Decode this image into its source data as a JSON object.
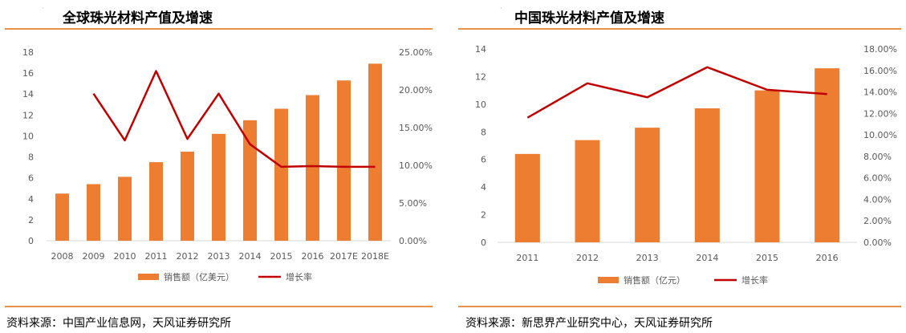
{
  "panels": [
    {
      "title": "全球珠光材料产值及增速",
      "source": "资料来源：中国产业信息网，天风证券研究所"
    },
    {
      "title": "中国珠光材料产值及增速",
      "source": "资料来源：新思界产业研究中心，天风证券研究所"
    }
  ],
  "colors": {
    "bar": "#ED7D31",
    "line": "#C00000",
    "rule": "#E8914A"
  },
  "chart_data": [
    {
      "type": "bar",
      "categories": [
        "2008",
        "2009",
        "2010",
        "2011",
        "2012",
        "2013",
        "2014",
        "2015",
        "2016",
        "2017E",
        "2018E"
      ],
      "series": [
        {
          "name": "销售额（亿美元）",
          "type": "bar",
          "axis": "left",
          "values": [
            4.5,
            5.4,
            6.1,
            7.5,
            8.5,
            10.2,
            11.5,
            12.6,
            13.9,
            15.3,
            16.9
          ]
        },
        {
          "name": "增长率",
          "type": "line",
          "axis": "right",
          "values": [
            null,
            19.5,
            13.3,
            22.5,
            13.5,
            19.5,
            12.8,
            9.8,
            9.9,
            9.8,
            9.8
          ]
        }
      ],
      "left_axis": {
        "min": 0,
        "max": 18,
        "step": 2,
        "ticks": [
          "0",
          "2",
          "4",
          "6",
          "8",
          "10",
          "12",
          "14",
          "16",
          "18"
        ]
      },
      "right_axis": {
        "min": 0,
        "max": 25,
        "step": 5,
        "ticks": [
          "0.00%",
          "5.00%",
          "10.00%",
          "15.00%",
          "20.00%",
          "25.00%"
        ]
      },
      "legend": [
        "销售额（亿美元）",
        "增长率"
      ],
      "legend_position": "bottom"
    },
    {
      "type": "bar",
      "categories": [
        "2011",
        "2012",
        "2013",
        "2014",
        "2015",
        "2016"
      ],
      "series": [
        {
          "name": "销售额（亿元）",
          "type": "bar",
          "axis": "left",
          "values": [
            6.4,
            7.4,
            8.3,
            9.7,
            11.0,
            12.6
          ]
        },
        {
          "name": "增长率",
          "type": "line",
          "axis": "right",
          "values": [
            11.6,
            14.8,
            13.5,
            16.3,
            14.2,
            13.8
          ]
        }
      ],
      "left_axis": {
        "min": 0,
        "max": 14,
        "step": 2,
        "ticks": [
          "0",
          "2",
          "4",
          "6",
          "8",
          "10",
          "12",
          "14"
        ]
      },
      "right_axis": {
        "min": 0,
        "max": 18,
        "step": 2,
        "ticks": [
          "0.00%",
          "2.00%",
          "4.00%",
          "6.00%",
          "8.00%",
          "10.00%",
          "12.00%",
          "14.00%",
          "16.00%",
          "18.00%"
        ]
      },
      "legend": [
        "销售额（亿元）",
        "增长率"
      ],
      "legend_position": "bottom"
    }
  ]
}
